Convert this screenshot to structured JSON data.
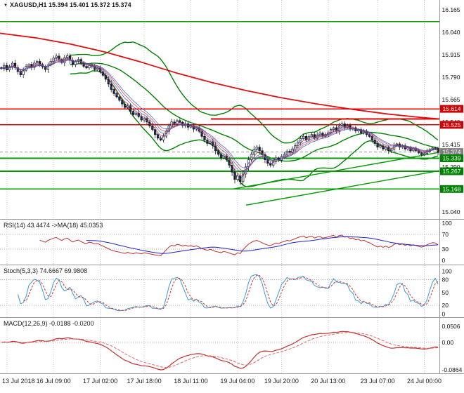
{
  "header": {
    "icon": "▼",
    "title": "XAGUSD,H1 15.394 15.401 15.372 15.374"
  },
  "panels": {
    "rsi_label": "RSI(14) 43.4474 ->MA(18) 45.0353",
    "stoch_label": "Stoch(5,3,3) 74.6667 69.9808",
    "macd_label": "MACD(12,26,9) -0.0188 -0.0200"
  },
  "colors": {
    "up_candle": "#ffffff",
    "down_candle": "#1a1a1a",
    "candle_outline": "#1a1a1a",
    "bollinger": "#008000",
    "long_ma": "#dd1111",
    "fan_a": "#3a55c4",
    "fan_b": "#c43a3a",
    "rsi_line": "#c03030",
    "rsi_ma": "#2020c0",
    "stoch_k": "#3a9bd5",
    "stoch_d": "#d03030",
    "macd_line": "#c03030",
    "macd_signal": "#e06666",
    "grid": "#c9c9c9",
    "separator": "#9a9a9a",
    "axis_text": "#111111",
    "level_dotted": "#b5b5b5",
    "current_price_line": "#999999"
  },
  "chart_data": {
    "type": "candlestick",
    "symbol": "XAGUSD",
    "timeframe": "H1",
    "last_ohlc": {
      "open": "15.394",
      "high": "15.401",
      "low": "15.372",
      "close": "15.374"
    },
    "bars": 160,
    "closes": [
      15.838,
      15.856,
      15.831,
      15.849,
      15.868,
      15.843,
      15.822,
      15.804,
      15.829,
      15.851,
      15.862,
      15.845,
      15.869,
      15.878,
      15.861,
      15.848,
      15.833,
      15.859,
      15.878,
      15.896,
      15.908,
      15.889,
      15.872,
      15.898,
      15.909,
      15.884,
      15.861,
      15.878,
      15.889,
      15.869,
      15.851,
      15.842,
      15.858,
      15.851,
      15.833,
      15.841,
      15.82,
      15.801,
      15.779,
      15.752,
      15.722,
      15.699,
      15.681,
      15.662,
      15.641,
      15.622,
      15.631,
      15.601,
      15.582,
      15.59,
      15.571,
      15.552,
      15.561,
      15.541,
      15.519,
      15.499,
      15.471,
      15.451,
      15.441,
      15.462,
      15.489,
      15.519,
      15.541,
      15.531,
      15.549,
      15.539,
      15.521,
      15.531,
      15.512,
      15.519,
      15.501,
      15.509,
      15.489,
      15.461,
      15.441,
      15.422,
      15.431,
      15.409,
      15.381,
      15.361,
      15.341,
      15.352,
      15.331,
      15.301,
      15.262,
      15.221,
      15.241,
      15.209,
      15.251,
      15.291,
      15.331,
      15.361,
      15.389,
      15.401,
      15.381,
      15.359,
      15.331,
      15.311,
      15.301,
      15.319,
      15.341,
      15.329,
      15.349,
      15.361,
      15.379,
      15.371,
      15.391,
      15.409,
      15.429,
      15.449,
      15.461,
      15.441,
      15.459,
      15.471,
      15.451,
      15.469,
      15.479,
      15.461,
      15.471,
      15.481,
      15.499,
      15.509,
      15.491,
      15.519,
      15.531,
      15.511,
      15.521,
      15.501,
      15.509,
      15.491,
      15.499,
      15.481,
      15.489,
      15.471,
      15.461,
      15.441,
      15.421,
      15.401,
      15.409,
      15.391,
      15.401,
      15.381,
      15.389,
      15.409,
      15.419,
      15.401,
      15.409,
      15.391,
      15.399,
      15.381,
      15.391,
      15.381,
      15.369,
      15.359,
      15.366,
      15.378,
      15.388,
      15.396,
      15.394,
      15.374
    ],
    "main_axis": {
      "price_max": 16.22,
      "price_min": 15.009,
      "ticks": [
        "16.165",
        "16.040",
        "15.915",
        "15.790",
        "15.665",
        "15.540",
        "15.415",
        "15.290",
        "15.165",
        "15.040"
      ]
    },
    "x_ticks": [
      {
        "label": "13 Jul 2018",
        "bar": 2
      },
      {
        "label": "16 Jul 09:00",
        "bar": 19
      },
      {
        "label": "17 Jul 02:00",
        "bar": 36
      },
      {
        "label": "17 Jul 18:00",
        "bar": 52
      },
      {
        "label": "18 Jul 11:00",
        "bar": 69
      },
      {
        "label": "19 Jul 04:00",
        "bar": 86
      },
      {
        "label": "19 Jul 20:00",
        "bar": 102
      },
      {
        "label": "20 Jul 13:00",
        "bar": 119
      },
      {
        "label": "23 Jul 07:00",
        "bar": 137
      },
      {
        "label": "24 Jul 00:00",
        "bar": 154
      }
    ],
    "overlays": {
      "bollinger": {
        "period": 26,
        "deviation": 2
      },
      "ma_fan_periods": [
        2,
        4,
        6,
        8,
        10
      ],
      "long_ma": {
        "points": [
          [
            0,
            16.035
          ],
          [
            0.08,
            16.01
          ],
          [
            0.16,
            15.975
          ],
          [
            0.24,
            15.93
          ],
          [
            0.32,
            15.875
          ],
          [
            0.4,
            15.815
          ],
          [
            0.48,
            15.762
          ],
          [
            0.56,
            15.716
          ],
          [
            0.64,
            15.676
          ],
          [
            0.72,
            15.642
          ],
          [
            0.8,
            15.612
          ],
          [
            0.88,
            15.586
          ],
          [
            0.95,
            15.568
          ],
          [
            1.0,
            15.558
          ]
        ]
      },
      "h_lines": [
        {
          "price": 16.1,
          "color": "#009900"
        },
        {
          "price": 15.614,
          "color": "#e00000"
        },
        {
          "price": 15.558,
          "color": "#e00000",
          "from": 0.48
        },
        {
          "price": 15.525,
          "color": "#e00000"
        },
        {
          "price": 15.339,
          "color": "#009900"
        },
        {
          "price": 15.267,
          "color": "#009900"
        },
        {
          "price": 15.168,
          "color": "#009900"
        }
      ],
      "trend_lines": [
        {
          "from": [
            0.53,
            15.168
          ],
          "to": [
            1.0,
            15.372
          ],
          "color": "#009900"
        },
        {
          "from": [
            0.56,
            15.078
          ],
          "to": [
            1.0,
            15.27
          ],
          "color": "#009900"
        }
      ],
      "current_price": 15.374
    },
    "price_markers": [
      {
        "text": "15.614",
        "price": 15.614,
        "bg": "#d00000"
      },
      {
        "text": "15.525",
        "price": 15.525,
        "bg": "#d00000"
      },
      {
        "text": "15.374",
        "price": 15.374,
        "bg": "#808080"
      },
      {
        "text": "15.339",
        "price": 15.339,
        "bg": "#008000"
      },
      {
        "text": "15.267",
        "price": 15.267,
        "bg": "#008000"
      },
      {
        "text": "15.168",
        "price": 15.168,
        "bg": "#008000"
      }
    ],
    "rsi": {
      "period": 14,
      "ma_period": 18,
      "value": "43.4474",
      "ma_value": "45.0353",
      "ticks": [
        "100",
        "70",
        "30",
        "0"
      ],
      "levels": [
        70,
        30
      ]
    },
    "stoch": {
      "k": 5,
      "d": 3,
      "slowing": 3,
      "value": "74.6667",
      "signal": "69.9808",
      "ticks": [
        "100",
        "80",
        "50",
        "20",
        "0"
      ],
      "levels": [
        80,
        20
      ]
    },
    "macd": {
      "fast": 12,
      "slow": 26,
      "signal_period": 9,
      "value": "-0.0188",
      "signal_value": "-0.0200",
      "ticks": [
        "0.0506",
        "0.00",
        "-0.0864"
      ]
    }
  }
}
